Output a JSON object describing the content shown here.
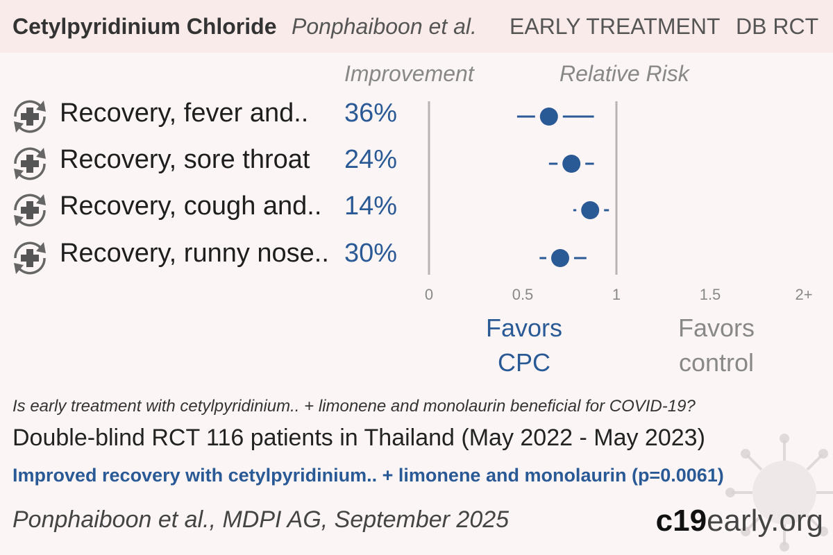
{
  "header": {
    "drug": "Cetylpyridinium Chloride",
    "author": "Ponphaiboon et al.",
    "stage": "EARLY TREATMENT",
    "design": "DB RCT"
  },
  "columns": {
    "improvement": "Improvement",
    "relative_risk": "Relative Risk"
  },
  "chart_data": {
    "type": "forest",
    "xlim": [
      0,
      2
    ],
    "ticks": [
      {
        "value": 0,
        "label": "0"
      },
      {
        "value": 0.5,
        "label": "0.5"
      },
      {
        "value": 1,
        "label": "1"
      },
      {
        "value": 1.5,
        "label": "1.5"
      },
      {
        "value": 2,
        "label": "2+"
      }
    ],
    "reference_line": 1,
    "rows": [
      {
        "label": "Recovery, fever and..",
        "improvement": "36%",
        "rr": 0.64,
        "ci": [
          0.47,
          0.88
        ]
      },
      {
        "label": "Recovery, sore throat",
        "improvement": "24%",
        "rr": 0.76,
        "ci": [
          0.64,
          0.88
        ]
      },
      {
        "label": "Recovery, cough and..",
        "improvement": "14%",
        "rr": 0.86,
        "ci": [
          0.77,
          0.96
        ]
      },
      {
        "label": "Recovery, runny nose..",
        "improvement": "30%",
        "rr": 0.7,
        "ci": [
          0.59,
          0.84
        ]
      }
    ],
    "favors_left": [
      "Favors",
      "CPC"
    ],
    "favors_right": [
      "Favors",
      "control"
    ]
  },
  "footer": {
    "question": "Is early treatment with cetylpyridinium.. + limonene and monolaurin beneficial for COVID-19?",
    "design": "Double-blind RCT 116 patients in Thailand (May 2022 - May 2023)",
    "conclusion": "Improved recovery with cetylpyridinium.. + limonene and monolaurin (p=0.0061)",
    "citation": "Ponphaiboon et al., MDPI AG, September 2025",
    "brand_bold": "c19",
    "brand_light": "early.org"
  },
  "icons": {
    "row": "recovery-icon",
    "background": "virus-icon"
  },
  "colors": {
    "accent": "#2a5a96",
    "muted": "#888888",
    "background": "#fcf5f5",
    "header": "#f8ebe9"
  }
}
